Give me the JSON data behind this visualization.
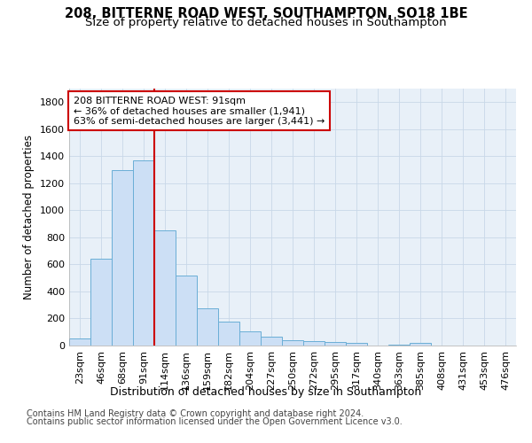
{
  "title1": "208, BITTERNE ROAD WEST, SOUTHAMPTON, SO18 1BE",
  "title2": "Size of property relative to detached houses in Southampton",
  "xlabel": "Distribution of detached houses by size in Southampton",
  "ylabel": "Number of detached properties",
  "categories": [
    "23sqm",
    "46sqm",
    "68sqm",
    "91sqm",
    "114sqm",
    "136sqm",
    "159sqm",
    "182sqm",
    "204sqm",
    "227sqm",
    "250sqm",
    "272sqm",
    "295sqm",
    "317sqm",
    "340sqm",
    "363sqm",
    "385sqm",
    "408sqm",
    "431sqm",
    "453sqm",
    "476sqm"
  ],
  "values": [
    50,
    640,
    1300,
    1370,
    850,
    520,
    275,
    175,
    105,
    65,
    38,
    35,
    28,
    18,
    0,
    8,
    18,
    0,
    0,
    0,
    0
  ],
  "bar_color": "#ccdff5",
  "bar_edge_color": "#6aaed6",
  "red_line_index": 3,
  "annotation_line1": "208 BITTERNE ROAD WEST: 91sqm",
  "annotation_line2": "← 36% of detached houses are smaller (1,941)",
  "annotation_line3": "63% of semi-detached houses are larger (3,441) →",
  "annotation_box_color": "#cc0000",
  "ylim": [
    0,
    1900
  ],
  "yticks": [
    0,
    200,
    400,
    600,
    800,
    1000,
    1200,
    1400,
    1600,
    1800
  ],
  "grid_color": "#c8d8e8",
  "background_color": "#e8f0f8",
  "footer1": "Contains HM Land Registry data © Crown copyright and database right 2024.",
  "footer2": "Contains public sector information licensed under the Open Government Licence v3.0.",
  "title1_fontsize": 10.5,
  "title2_fontsize": 9.5,
  "xlabel_fontsize": 9,
  "ylabel_fontsize": 8.5,
  "tick_fontsize": 8,
  "footer_fontsize": 7
}
